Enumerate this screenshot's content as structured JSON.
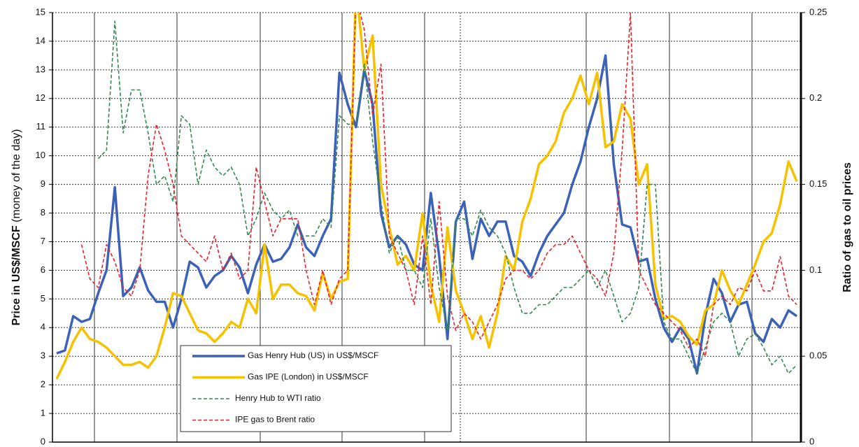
{
  "chart_data": {
    "type": "line",
    "ylabel": "Price in US$/MSCF",
    "ylabel_note": "(money of the day)",
    "y2label": "Ratio of gas to oil prices",
    "categories": [
      null,
      null,
      null,
      null,
      null,
      null,
      null,
      null,
      null,
      null,
      null,
      null,
      null,
      null,
      null,
      null,
      null,
      null,
      null,
      null,
      null,
      null,
      null,
      null,
      null,
      null,
      null,
      null,
      null,
      null,
      null,
      null,
      null,
      null,
      null,
      null,
      null,
      null,
      null,
      null,
      null,
      null,
      null,
      null,
      null,
      null,
      null,
      null,
      null,
      null,
      null,
      null,
      null,
      null,
      null,
      null,
      null,
      null,
      null,
      null,
      null,
      null,
      null,
      null,
      null,
      null,
      null,
      null,
      null,
      null,
      null,
      null,
      null,
      null,
      null,
      null,
      null,
      null,
      null,
      null,
      null,
      null,
      null,
      null,
      null,
      null,
      null,
      null,
      null,
      null
    ],
    "ylim": [
      0,
      15
    ],
    "yticks": [
      0,
      1,
      2,
      3,
      4,
      5,
      6,
      7,
      8,
      9,
      10,
      11,
      12,
      13,
      14,
      15
    ],
    "y2lim": [
      0,
      0.25
    ],
    "y2ticks": [
      0,
      0.05,
      0.1,
      0.15,
      0.2,
      0.25
    ],
    "grid": true,
    "legend": "lower left",
    "series": [
      {
        "name": "Gas Henry Hub (US) in US$/MSCF",
        "color": "#3b62b8",
        "style": "solid",
        "values": [
          3.1,
          3.2,
          4.4,
          4.2,
          4.3,
          5.2,
          6.0,
          8.9,
          5.1,
          5.4,
          6.1,
          5.3,
          4.9,
          4.9,
          4.0,
          5.0,
          6.3,
          6.1,
          5.4,
          5.8,
          6.0,
          6.5,
          6.1,
          5.2,
          6.2,
          6.9,
          6.3,
          6.4,
          6.8,
          7.6,
          6.8,
          6.5,
          7.2,
          7.8,
          12.9,
          11.8,
          11.0,
          13.0,
          11.8,
          8.0,
          6.8,
          7.2,
          6.9,
          6.2,
          6.0,
          8.7,
          6.5,
          3.6,
          7.7,
          8.4,
          6.4,
          7.8,
          7.2,
          7.7,
          7.7,
          6.5,
          6.3,
          5.8,
          6.6,
          7.2,
          7.6,
          8.0,
          9.0,
          9.8,
          11.0,
          12.0,
          13.5,
          9.7,
          7.6,
          7.5,
          6.3,
          6.4,
          5.0,
          4.0,
          3.5,
          4.0,
          3.6,
          2.4,
          4.4,
          5.7,
          5.2,
          4.2,
          4.8,
          4.9,
          3.8,
          3.5,
          4.3,
          4.0,
          4.6,
          4.4
        ]
      },
      {
        "name": "Gas IPE (London) in US$/MSCF",
        "color": "#f5c200",
        "style": "solid",
        "values": [
          2.2,
          2.8,
          3.5,
          4.0,
          3.6,
          3.5,
          3.3,
          3.0,
          2.7,
          2.7,
          2.8,
          2.6,
          3.0,
          4.0,
          5.2,
          5.1,
          4.5,
          3.9,
          3.8,
          3.5,
          3.8,
          4.2,
          4.0,
          5.0,
          4.5,
          6.9,
          5.0,
          5.5,
          5.5,
          5.2,
          5.1,
          4.6,
          5.9,
          5.0,
          5.6,
          5.7,
          16.0,
          13.0,
          14.2,
          9.0,
          7.5,
          6.2,
          6.5,
          6.0,
          8.0,
          5.5,
          4.2,
          7.5,
          5.3,
          4.5,
          3.6,
          4.4,
          3.3,
          4.5,
          6.5,
          6.0,
          7.7,
          8.5,
          9.7,
          10.0,
          10.5,
          11.5,
          12.0,
          12.8,
          11.8,
          12.9,
          10.3,
          10.5,
          11.8,
          11.3,
          9.0,
          9.7,
          5.5,
          4.3,
          4.4,
          4.2,
          3.7,
          3.4,
          4.6,
          4.8,
          6.0,
          5.3,
          4.8,
          5.5,
          6.2,
          7.0,
          7.3,
          8.3,
          9.8,
          9.1
        ]
      },
      {
        "name": "Henry Hub to WTI ratio",
        "color": "#2f8a4e",
        "style": "dashed",
        "axis": "y2",
        "values": [
          null,
          null,
          null,
          null,
          null,
          0.165,
          0.17,
          0.245,
          0.18,
          0.205,
          0.205,
          0.18,
          0.15,
          0.155,
          0.14,
          0.19,
          0.185,
          0.15,
          0.17,
          0.16,
          0.155,
          0.16,
          0.15,
          0.12,
          0.13,
          0.145,
          0.135,
          0.13,
          0.135,
          0.12,
          0.12,
          0.12,
          0.13,
          0.125,
          0.19,
          0.185,
          0.185,
          0.22,
          0.175,
          0.14,
          0.11,
          0.12,
          0.1,
          0.1,
          0.09,
          0.13,
          0.09,
          0.065,
          0.13,
          0.13,
          0.12,
          0.135,
          0.125,
          0.12,
          0.11,
          0.09,
          0.075,
          0.075,
          0.08,
          0.08,
          0.085,
          0.09,
          0.09,
          0.095,
          0.1,
          0.09,
          0.1,
          0.085,
          0.07,
          0.075,
          0.09,
          0.15,
          0.15,
          0.07,
          0.06,
          0.06,
          0.05,
          0.04,
          0.055,
          0.07,
          0.075,
          0.07,
          0.05,
          0.06,
          0.063,
          0.055,
          0.045,
          0.05,
          0.04,
          0.045
        ]
      },
      {
        "name": "IPE gas to Brent ratio",
        "color": "#e8232b",
        "style": "dashed",
        "axis": "y2",
        "values": [
          null,
          null,
          null,
          0.115,
          0.095,
          0.09,
          0.115,
          0.105,
          0.09,
          0.085,
          0.1,
          0.155,
          0.185,
          0.17,
          0.15,
          0.12,
          0.115,
          0.11,
          0.105,
          0.12,
          0.1,
          0.11,
          0.095,
          0.1,
          0.16,
          0.14,
          0.12,
          0.13,
          0.13,
          0.13,
          0.1,
          0.08,
          0.1,
          0.08,
          0.095,
          0.1,
          0.26,
          0.24,
          0.19,
          0.22,
          0.12,
          0.11,
          0.1,
          0.08,
          0.12,
          0.08,
          0.14,
          0.085,
          0.065,
          0.075,
          0.07,
          0.06,
          0.07,
          0.08,
          0.095,
          0.1,
          0.1,
          0.095,
          0.1,
          0.11,
          0.115,
          0.115,
          0.12,
          0.11,
          0.1,
          0.095,
          0.085,
          0.11,
          0.17,
          0.25,
          0.1,
          0.09,
          0.08,
          0.075,
          0.07,
          0.065,
          0.055,
          0.06,
          0.05,
          0.08,
          0.085,
          0.08,
          0.09,
          0.088,
          0.1,
          0.088,
          0.088,
          0.108,
          0.085,
          0.08
        ]
      }
    ]
  }
}
